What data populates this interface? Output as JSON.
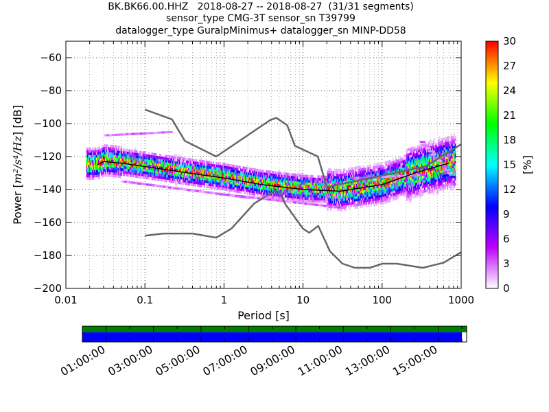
{
  "header": {
    "title_line1": "BK.BK66.00.HHZ   2018-08-27 -- 2018-08-27  (31/31 segments)",
    "title_line2": "sensor_type CMG-3T sensor_sn T39799",
    "title_line3": "datalogger_type GuralpMinimus+ datalogger_sn MINP-DD58"
  },
  "chart_data": {
    "type": "heatmap",
    "xlabel": "Period [s]",
    "ylabel_prefix": "Power [",
    "ylabel_math": "m²/s⁴/Hz",
    "ylabel_suffix": "] [dB]",
    "x_scale": "log",
    "xlim": [
      0.01,
      1000
    ],
    "ylim": [
      -200,
      -50
    ],
    "x_ticks": [
      0.01,
      0.1,
      1,
      10,
      100,
      1000
    ],
    "x_tick_labels": [
      "0.01",
      "0.1",
      "1",
      "10",
      "100",
      "1000"
    ],
    "y_ticks": [
      -200,
      -180,
      -160,
      -140,
      -120,
      -100,
      -80,
      -60
    ],
    "y_tick_labels": [
      "−200",
      "−180",
      "−160",
      "−140",
      "−120",
      "−100",
      "−80",
      "−60"
    ],
    "grid": true,
    "colorbar": {
      "label": "[%]",
      "range": [
        0,
        30
      ],
      "ticks": [
        0,
        3,
        6,
        9,
        12,
        15,
        18,
        21,
        24,
        27,
        30
      ],
      "colormap_stops": [
        "#ffffff",
        "#bf00ff",
        "#0000ff",
        "#00ffff",
        "#00ff00",
        "#ffff00",
        "#ff0000"
      ]
    },
    "nhnm": {
      "name": "New High Noise Model",
      "color": "#666666",
      "x": [
        0.1,
        0.22,
        0.32,
        0.8,
        3.8,
        4.6,
        6.3,
        7.9,
        15.4,
        20,
        354.8,
        1000
      ],
      "y": [
        -91.5,
        -97.4,
        -110.5,
        -120,
        -98,
        -96.5,
        -101,
        -113.5,
        -120,
        -138.5,
        -126,
        -112.5
      ]
    },
    "nlnm": {
      "name": "New Low Noise Model",
      "color": "#666666",
      "x": [
        0.1,
        0.17,
        0.4,
        0.8,
        1.24,
        2.4,
        4.3,
        5,
        6,
        10,
        12,
        15.6,
        21.9,
        31.6,
        45,
        70,
        101,
        154,
        328,
        600,
        1000
      ],
      "y": [
        -168,
        -166.7,
        -166.7,
        -169.2,
        -163.7,
        -148.6,
        -141.1,
        -141.1,
        -149,
        -163.8,
        -166.2,
        -162.1,
        -177.5,
        -185,
        -187.5,
        -187.5,
        -185,
        -185,
        -187.5,
        -184.4,
        -178
      ]
    },
    "mode_line": {
      "name": "mode",
      "color": "#000000",
      "x": [
        0.025,
        0.03,
        0.05,
        0.1,
        0.3,
        1,
        3,
        10,
        30,
        100,
        300,
        700
      ],
      "y": [
        -125,
        -123,
        -124,
        -126,
        -129.5,
        -133,
        -137,
        -140,
        -141,
        -137,
        -129,
        -124
      ]
    }
  },
  "timeline": {
    "time_labels": [
      "01:00:00",
      "03:00:00",
      "05:00:00",
      "07:00:00",
      "09:00:00",
      "11:00:00",
      "13:00:00",
      "15:00:00"
    ],
    "hours_start": 0,
    "hours_end": 16.2,
    "coverage_end_hours": 16.0,
    "colors": {
      "data_available": "#008000",
      "segments": "#0000ff"
    }
  }
}
